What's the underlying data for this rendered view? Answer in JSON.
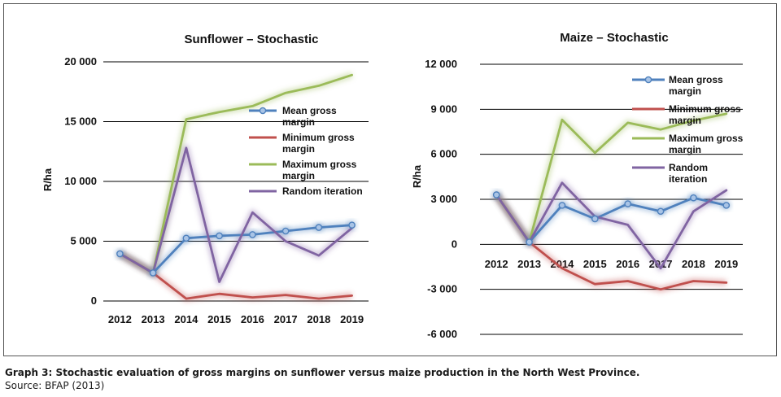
{
  "caption": "Graph 3: Stochastic evaluation of gross margins on sunflower versus maize production in the North West Province.",
  "source": "Source: BFAP (2013)",
  "colors": {
    "mean": "#4f81bd",
    "minimum": "#c0504d",
    "maximum": "#9bbb59",
    "random": "#8064a2",
    "gridline": "#000000"
  },
  "chart_data": [
    {
      "type": "line",
      "title": "Sunflower – Stochastic",
      "xlabel": "",
      "ylabel": "R/ha",
      "categories": [
        "2012",
        "2013",
        "2014",
        "2015",
        "2016",
        "2017",
        "2018",
        "2019"
      ],
      "ylim": [
        0,
        20000
      ],
      "yticks": [
        0,
        5000,
        10000,
        15000,
        20000
      ],
      "ytick_labels": [
        "0",
        "5 000",
        "10 000",
        "15 000",
        "20 000"
      ],
      "grid": true,
      "legend_position": "middle-right",
      "series": [
        {
          "name": "Mean gross margin",
          "name_lines": [
            "Mean gross",
            "margin"
          ],
          "color_key": "mean",
          "marker": true,
          "values": [
            3950,
            2350,
            5250,
            5450,
            5550,
            5850,
            6150,
            6350
          ]
        },
        {
          "name": "Minimum gross margin",
          "name_lines": [
            "Minimum gross",
            "margin"
          ],
          "color_key": "minimum",
          "marker": false,
          "values": [
            3950,
            2350,
            200,
            600,
            300,
            500,
            200,
            450
          ]
        },
        {
          "name": "Maximum gross margin",
          "name_lines": [
            "Maximum gross",
            "margin"
          ],
          "color_key": "maximum",
          "marker": false,
          "values": [
            3950,
            2350,
            15200,
            15800,
            16300,
            17400,
            18000,
            18900
          ]
        },
        {
          "name": "Random iteration",
          "name_lines": [
            "Random iteration"
          ],
          "color_key": "random",
          "marker": false,
          "values": [
            3950,
            2350,
            12800,
            1600,
            7400,
            5000,
            3800,
            6100
          ]
        }
      ]
    },
    {
      "type": "line",
      "title": "Maize – Stochastic",
      "xlabel": "",
      "ylabel": "R/ha",
      "categories": [
        "2012",
        "2013",
        "2014",
        "2015",
        "2016",
        "2017",
        "2018",
        "2019"
      ],
      "ylim": [
        -6000,
        12000
      ],
      "yticks": [
        -6000,
        -3000,
        0,
        3000,
        6000,
        9000,
        12000
      ],
      "ytick_labels": [
        "-6 000",
        "-3 000",
        "0",
        "3 000",
        "6 000",
        "9 000",
        "12 000"
      ],
      "grid": true,
      "legend_position": "top-right",
      "series": [
        {
          "name": "Mean gross margin",
          "name_lines": [
            "Mean gross",
            "margin"
          ],
          "color_key": "mean",
          "marker": true,
          "values": [
            3300,
            150,
            2600,
            1700,
            2700,
            2200,
            3100,
            2600
          ]
        },
        {
          "name": "Minimum gross margin",
          "name_lines": [
            "Minimum gross",
            "margin"
          ],
          "color_key": "minimum",
          "marker": false,
          "values": [
            3300,
            150,
            -1600,
            -2650,
            -2450,
            -3000,
            -2450,
            -2550
          ]
        },
        {
          "name": "Maximum gross margin",
          "name_lines": [
            "Maximum gross",
            "margin"
          ],
          "color_key": "maximum",
          "marker": false,
          "values": [
            3300,
            150,
            8300,
            6100,
            8100,
            7650,
            8250,
            8700
          ]
        },
        {
          "name": "Random iteration",
          "name_lines": [
            "Random",
            "iteration"
          ],
          "color_key": "random",
          "marker": false,
          "values": [
            3300,
            150,
            4100,
            1850,
            1300,
            -1600,
            2200,
            3600
          ]
        }
      ]
    }
  ]
}
